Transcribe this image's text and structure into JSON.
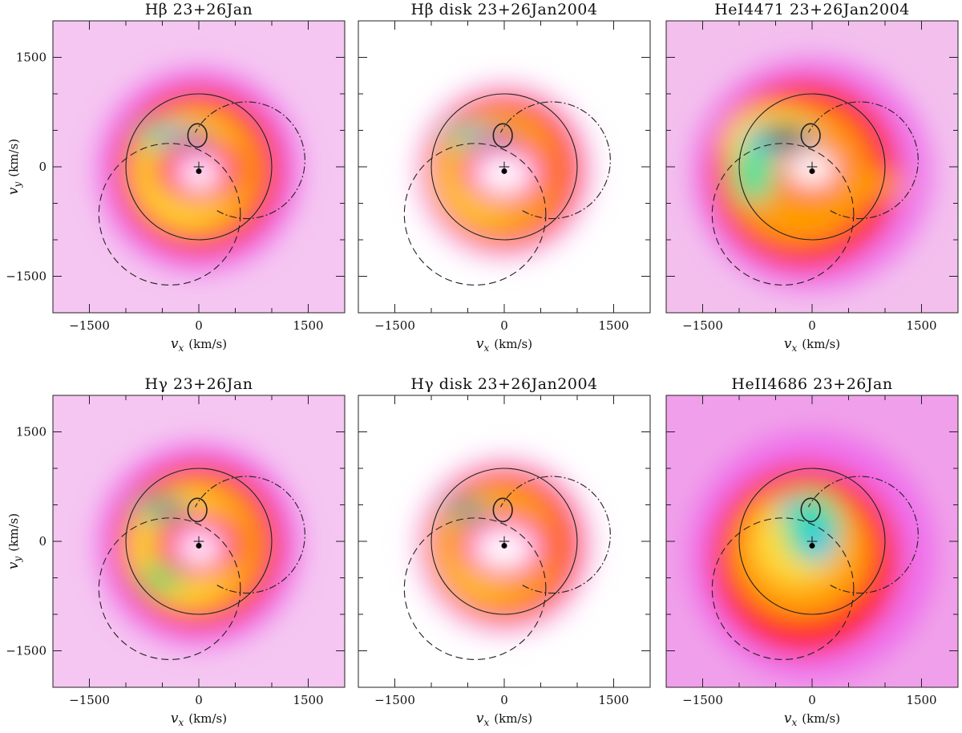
{
  "chart_data": [
    {
      "type": "heatmap",
      "title": "Hβ 23+26Jan",
      "xlabel_var": "v",
      "xlabel_sub": "x",
      "xlabel_unit": "(km/s)",
      "ylabel_var": "v",
      "ylabel_sub": "y",
      "ylabel_unit": "(km/s)",
      "xlim": [
        -2000,
        2000
      ],
      "ylim": [
        -2000,
        2000
      ],
      "xticks": [
        -1500,
        0,
        1500
      ],
      "yticks": [
        -1500,
        0,
        1500
      ],
      "xtick_labels": [
        "−1500",
        "0",
        "1500"
      ],
      "ytick_labels": [
        "−1500",
        "0",
        "1500"
      ],
      "show_xlabel": true,
      "show_ylabel": true,
      "show_yticks": true,
      "background": "#f5c6f1",
      "blobs": [
        {
          "x": 0,
          "y": -50,
          "rx": 1400,
          "ry": 1400,
          "color": "#ee66ec",
          "o": 0.85
        },
        {
          "x": 0,
          "y": -50,
          "rx": 1150,
          "ry": 1150,
          "color": "#ff2020",
          "o": 0.9
        },
        {
          "x": -50,
          "y": -60,
          "rx": 880,
          "ry": 880,
          "color": "#ffaa00",
          "o": 1
        },
        {
          "x": -150,
          "y": -80,
          "rx": 720,
          "ry": 720,
          "color": "#ffe040",
          "o": 0.9
        },
        {
          "x": -500,
          "y": 430,
          "rx": 360,
          "ry": 150,
          "color": "#3fe29a",
          "o": 1
        },
        {
          "x": -350,
          "y": 450,
          "rx": 250,
          "ry": 120,
          "color": "#2fc6e6",
          "o": 1
        },
        {
          "x": 0,
          "y": -50,
          "rx": 620,
          "ry": 460,
          "color": "#ff2020",
          "o": 1
        },
        {
          "x": 0,
          "y": -60,
          "rx": 360,
          "ry": 290,
          "color": "#ff88ee",
          "o": 1
        },
        {
          "x": 20,
          "y": -110,
          "rx": 260,
          "ry": 190,
          "color": "#ffffff",
          "o": 0.95
        },
        {
          "x": 0,
          "y": 380,
          "rx": 120,
          "ry": 110,
          "color": "#1a1aa8",
          "o": 1
        }
      ]
    },
    {
      "type": "heatmap",
      "title": "Hβ disk 23+26Jan2004",
      "xlabel_var": "v",
      "xlabel_sub": "x",
      "xlabel_unit": "(km/s)",
      "ylabel_var": "",
      "ylabel_sub": "",
      "ylabel_unit": "",
      "xlim": [
        -2000,
        2000
      ],
      "ylim": [
        -2000,
        2000
      ],
      "xticks": [
        -1500,
        0,
        1500
      ],
      "yticks": [
        -1500,
        0,
        1500
      ],
      "xtick_labels": [
        "−1500",
        "0",
        "1500"
      ],
      "ytick_labels": [
        "",
        "",
        ""
      ],
      "show_xlabel": true,
      "show_ylabel": false,
      "show_yticks": false,
      "background": "#ffffff",
      "blobs": [
        {
          "x": 0,
          "y": -60,
          "rx": 1250,
          "ry": 1250,
          "color": "#f7c3f3",
          "o": 0.9
        },
        {
          "x": 0,
          "y": -60,
          "rx": 1060,
          "ry": 1060,
          "color": "#ff2020",
          "o": 1
        },
        {
          "x": -80,
          "y": -80,
          "rx": 870,
          "ry": 870,
          "color": "#ffaa00",
          "o": 1
        },
        {
          "x": -250,
          "y": -150,
          "rx": 620,
          "ry": 560,
          "color": "#ffe040",
          "o": 0.85
        },
        {
          "x": -500,
          "y": 430,
          "rx": 340,
          "ry": 140,
          "color": "#3fe29a",
          "o": 1
        },
        {
          "x": -350,
          "y": 450,
          "rx": 230,
          "ry": 110,
          "color": "#2fc6e6",
          "o": 1
        },
        {
          "x": 0,
          "y": -70,
          "rx": 660,
          "ry": 470,
          "color": "#ff2020",
          "o": 1
        },
        {
          "x": 0,
          "y": -80,
          "rx": 480,
          "ry": 340,
          "color": "#ff8cf0",
          "o": 1
        },
        {
          "x": 0,
          "y": -110,
          "rx": 360,
          "ry": 240,
          "color": "#ffffff",
          "o": 1
        },
        {
          "x": 0,
          "y": 390,
          "rx": 110,
          "ry": 100,
          "color": "#1a1aa8",
          "o": 1
        }
      ]
    },
    {
      "type": "heatmap",
      "title": "HeI4471 23+26Jan2004",
      "xlabel_var": "v",
      "xlabel_sub": "x",
      "xlabel_unit": "(km/s)",
      "ylabel_var": "",
      "ylabel_sub": "",
      "ylabel_unit": "",
      "xlim": [
        -2000,
        2000
      ],
      "ylim": [
        -2000,
        2000
      ],
      "xticks": [
        -1500,
        0,
        1500
      ],
      "yticks": [
        -1500,
        0,
        1500
      ],
      "xtick_labels": [
        "−1500",
        "0",
        "1500"
      ],
      "ytick_labels": [
        "",
        "",
        ""
      ],
      "show_xlabel": true,
      "show_ylabel": false,
      "show_yticks": false,
      "background": "#f3c0ee",
      "blobs": [
        {
          "x": 0,
          "y": -100,
          "rx": 1650,
          "ry": 1600,
          "color": "#ee66ec",
          "o": 0.8
        },
        {
          "x": -100,
          "y": -100,
          "rx": 1300,
          "ry": 1300,
          "color": "#ff2020",
          "o": 0.95
        },
        {
          "x": -200,
          "y": -100,
          "rx": 1000,
          "ry": 950,
          "color": "#ffaa00",
          "o": 0.9
        },
        {
          "x": -550,
          "y": 300,
          "rx": 650,
          "ry": 520,
          "color": "#ffe040",
          "o": 1
        },
        {
          "x": -800,
          "y": -100,
          "rx": 280,
          "ry": 400,
          "color": "#3fe29a",
          "o": 1
        },
        {
          "x": -450,
          "y": 380,
          "rx": 500,
          "ry": 190,
          "color": "#2fc6e6",
          "o": 1
        },
        {
          "x": -380,
          "y": 420,
          "rx": 300,
          "ry": 130,
          "color": "#000000",
          "o": 1
        },
        {
          "x": 800,
          "y": -250,
          "rx": 500,
          "ry": 160,
          "color": "#ffaa00",
          "o": 0.85
        },
        {
          "x": 0,
          "y": -50,
          "rx": 500,
          "ry": 350,
          "color": "#ff2020",
          "o": 1
        },
        {
          "x": 0,
          "y": -30,
          "rx": 340,
          "ry": 230,
          "color": "#ffffff",
          "o": 1
        }
      ]
    },
    {
      "type": "heatmap",
      "title": "Hγ 23+26Jan",
      "xlabel_var": "v",
      "xlabel_sub": "x",
      "xlabel_unit": "(km/s)",
      "ylabel_var": "v",
      "ylabel_sub": "y",
      "ylabel_unit": "(km/s)",
      "xlim": [
        -2000,
        2000
      ],
      "ylim": [
        -2000,
        2000
      ],
      "xticks": [
        -1500,
        0,
        1500
      ],
      "yticks": [
        -1500,
        0,
        1500
      ],
      "xtick_labels": [
        "−1500",
        "0",
        "1500"
      ],
      "ytick_labels": [
        "−1500",
        "0",
        "1500"
      ],
      "show_xlabel": true,
      "show_ylabel": true,
      "show_yticks": true,
      "background": "#f5c6f1",
      "blobs": [
        {
          "x": 0,
          "y": -50,
          "rx": 1400,
          "ry": 1400,
          "color": "#ee66ec",
          "o": 0.85
        },
        {
          "x": 0,
          "y": -50,
          "rx": 1150,
          "ry": 1150,
          "color": "#ff2020",
          "o": 0.9
        },
        {
          "x": -50,
          "y": -60,
          "rx": 900,
          "ry": 900,
          "color": "#ffaa00",
          "o": 1
        },
        {
          "x": -200,
          "y": -100,
          "rx": 760,
          "ry": 760,
          "color": "#ffe040",
          "o": 0.9
        },
        {
          "x": -500,
          "y": -500,
          "rx": 300,
          "ry": 200,
          "color": "#5ee070",
          "o": 1
        },
        {
          "x": -500,
          "y": 440,
          "rx": 380,
          "ry": 160,
          "color": "#3fe29a",
          "o": 1
        },
        {
          "x": -450,
          "y": 450,
          "rx": 200,
          "ry": 90,
          "color": "#1a1aa8",
          "o": 1
        },
        {
          "x": 0,
          "y": -50,
          "rx": 620,
          "ry": 460,
          "color": "#ff2020",
          "o": 1
        },
        {
          "x": 0,
          "y": -60,
          "rx": 380,
          "ry": 300,
          "color": "#ff88ee",
          "o": 1
        },
        {
          "x": 20,
          "y": -110,
          "rx": 260,
          "ry": 190,
          "color": "#ffffff",
          "o": 0.95
        }
      ]
    },
    {
      "type": "heatmap",
      "title": "Hγ disk 23+26Jan2004",
      "xlabel_var": "v",
      "xlabel_sub": "x",
      "xlabel_unit": "(km/s)",
      "ylabel_var": "",
      "ylabel_sub": "",
      "ylabel_unit": "",
      "xlim": [
        -2000,
        2000
      ],
      "ylim": [
        -2000,
        2000
      ],
      "xticks": [
        -1500,
        0,
        1500
      ],
      "yticks": [
        -1500,
        0,
        1500
      ],
      "xtick_labels": [
        "−1500",
        "0",
        "1500"
      ],
      "ytick_labels": [
        "",
        "",
        ""
      ],
      "show_xlabel": true,
      "show_ylabel": false,
      "show_yticks": false,
      "background": "#ffffff",
      "blobs": [
        {
          "x": 0,
          "y": -60,
          "rx": 1250,
          "ry": 1250,
          "color": "#f7c3f3",
          "o": 0.9
        },
        {
          "x": 0,
          "y": -60,
          "rx": 1060,
          "ry": 1060,
          "color": "#ff2020",
          "o": 1
        },
        {
          "x": -80,
          "y": -80,
          "rx": 870,
          "ry": 870,
          "color": "#ffaa00",
          "o": 1
        },
        {
          "x": -250,
          "y": -150,
          "rx": 560,
          "ry": 560,
          "color": "#ffe040",
          "o": 0.7
        },
        {
          "x": -500,
          "y": 430,
          "rx": 340,
          "ry": 140,
          "color": "#3fe29a",
          "o": 1
        },
        {
          "x": -530,
          "y": 440,
          "rx": 180,
          "ry": 80,
          "color": "#1a1aa8",
          "o": 1
        },
        {
          "x": 0,
          "y": -70,
          "rx": 680,
          "ry": 480,
          "color": "#ff2020",
          "o": 1
        },
        {
          "x": 0,
          "y": -80,
          "rx": 500,
          "ry": 350,
          "color": "#ff8cf0",
          "o": 1
        },
        {
          "x": 0,
          "y": -110,
          "rx": 380,
          "ry": 250,
          "color": "#ffffff",
          "o": 1
        }
      ]
    },
    {
      "type": "heatmap",
      "title": "HeII4686 23+26Jan",
      "xlabel_var": "v",
      "xlabel_sub": "x",
      "xlabel_unit": "(km/s)",
      "ylabel_var": "",
      "ylabel_sub": "",
      "ylabel_unit": "",
      "xlim": [
        -2000,
        2000
      ],
      "ylim": [
        -2000,
        2000
      ],
      "xticks": [
        -1500,
        0,
        1500
      ],
      "yticks": [
        -1500,
        0,
        1500
      ],
      "xtick_labels": [
        "−1500",
        "0",
        "1500"
      ],
      "ytick_labels": [
        "",
        "",
        ""
      ],
      "show_xlabel": true,
      "show_ylabel": false,
      "show_yticks": false,
      "background": "#f0a0ea",
      "blobs": [
        {
          "x": 0,
          "y": -200,
          "rx": 1700,
          "ry": 1700,
          "color": "#ee66ec",
          "o": 0.85
        },
        {
          "x": -100,
          "y": -250,
          "rx": 1300,
          "ry": 1300,
          "color": "#ff2020",
          "o": 1
        },
        {
          "x": -150,
          "y": -150,
          "rx": 950,
          "ry": 900,
          "color": "#ffaa00",
          "o": 0.95
        },
        {
          "x": -200,
          "y": 0,
          "rx": 600,
          "ry": 600,
          "color": "#ffe040",
          "o": 0.9
        },
        {
          "x": 0,
          "y": 200,
          "rx": 400,
          "ry": 480,
          "color": "#3fe29a",
          "o": 1
        },
        {
          "x": 80,
          "y": 0,
          "rx": 220,
          "ry": 300,
          "color": "#2fc6e6",
          "o": 1
        },
        {
          "x": -300,
          "y": 450,
          "rx": 200,
          "ry": 120,
          "color": "#2fc6e6",
          "o": 1
        }
      ]
    }
  ]
}
